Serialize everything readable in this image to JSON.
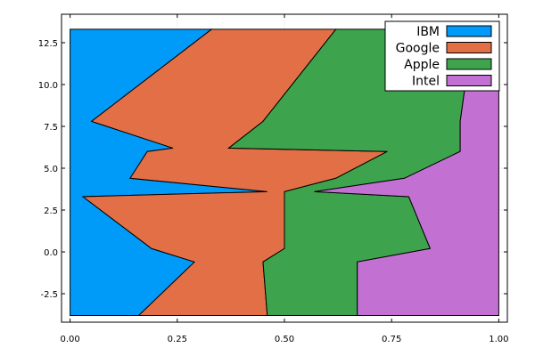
{
  "chart_data": {
    "type": "area",
    "orientation": "horizontal-stacked-normalized",
    "title": "",
    "xlabel": "",
    "ylabel": "",
    "xlim": [
      -0.02,
      1.02
    ],
    "ylim": [
      -4.2,
      14.2
    ],
    "grid": true,
    "legend_position": "top-right",
    "y": [
      13.3,
      7.8,
      6.2,
      6.0,
      4.4,
      3.6,
      3.3,
      0.2,
      -0.6,
      -3.8
    ],
    "series": [
      {
        "name": "IBM",
        "color": "#009af9",
        "values": [
          0.33,
          0.05,
          0.24,
          0.18,
          0.14,
          0.46,
          0.03,
          0.19,
          0.29,
          0.16
        ]
      },
      {
        "name": "Google",
        "color": "#e26f46",
        "values": [
          0.29,
          0.4,
          0.13,
          0.56,
          0.48,
          0.04,
          0.47,
          0.31,
          0.16,
          0.3
        ]
      },
      {
        "name": "Apple",
        "color": "#3da44d",
        "values": [
          0.32,
          0.46,
          0.54,
          0.17,
          0.16,
          0.07,
          0.29,
          0.34,
          0.22,
          0.21
        ]
      },
      {
        "name": "Intel",
        "color": "#c271d2",
        "values": [
          0.06,
          0.09,
          0.09,
          0.09,
          0.22,
          0.43,
          0.21,
          0.16,
          0.33,
          0.33
        ]
      }
    ],
    "xticks": [
      "0.00",
      "0.25",
      "0.50",
      "0.75",
      "1.00"
    ],
    "yticks": [
      "-2.5",
      "0.0",
      "2.5",
      "5.0",
      "7.5",
      "10.0",
      "12.5"
    ],
    "xtick_values": [
      0,
      0.25,
      0.5,
      0.75,
      1.0
    ],
    "ytick_values": [
      -2.5,
      0,
      2.5,
      5,
      7.5,
      10,
      12.5
    ]
  }
}
